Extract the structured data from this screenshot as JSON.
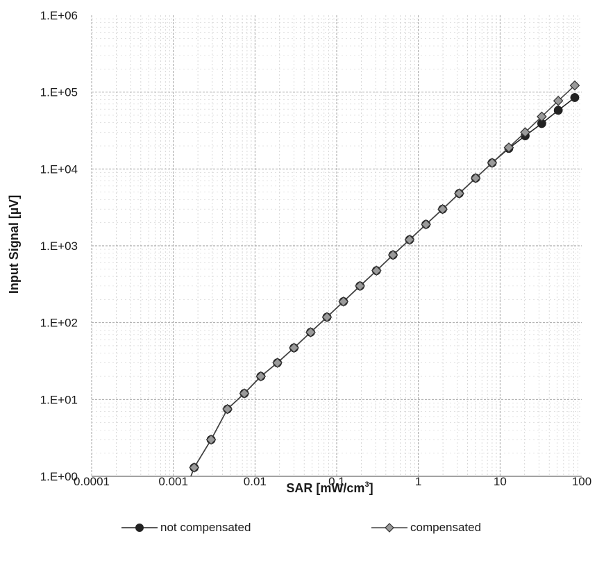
{
  "chart_data": {
    "type": "line",
    "title": "",
    "xlabel": "SAR [mW/cm",
    "xlabel_sup": "3",
    "xlabel_suffix": "]",
    "ylabel": "Input Signal [µV]",
    "x_scale": "log",
    "y_scale": "log",
    "xlim": [
      0.0001,
      100
    ],
    "ylim": [
      1,
      1000000
    ],
    "x_ticks": [
      "0.0001",
      "0.001",
      "0.01",
      "0.1",
      "1",
      "10",
      "100"
    ],
    "y_ticks": [
      "1.E+00",
      "1.E+01",
      "1.E+02",
      "1.E+03",
      "1.E+04",
      "1.E+05",
      "1.E+06"
    ],
    "grid": true,
    "legend_position": "bottom",
    "series": [
      {
        "name": "not compensated",
        "marker": "filled-circle",
        "color": "#222222",
        "x": [
          0.0018,
          0.0029,
          0.0046,
          0.0074,
          0.0118,
          0.0188,
          0.03,
          0.048,
          0.076,
          0.121,
          0.193,
          0.307,
          0.489,
          0.78,
          1.24,
          1.98,
          3.16,
          5.03,
          8.0,
          12.8,
          20.3,
          32.4,
          51.6,
          82.2
        ],
        "y": [
          1.3,
          3.0,
          7.5,
          12,
          20,
          30,
          47,
          75,
          118,
          188,
          300,
          475,
          760,
          1200,
          1900,
          3000,
          4800,
          7600,
          12000,
          18500,
          27000,
          39000,
          58000,
          85000
        ]
      },
      {
        "name": "compensated",
        "marker": "diamond",
        "color": "#777777",
        "x": [
          0.0018,
          0.0029,
          0.0046,
          0.0074,
          0.0118,
          0.0188,
          0.03,
          0.048,
          0.076,
          0.121,
          0.193,
          0.307,
          0.489,
          0.78,
          1.24,
          1.98,
          3.16,
          5.03,
          8.0,
          12.8,
          20.3,
          32.4,
          51.6,
          82.2
        ],
        "y": [
          1.3,
          3.0,
          7.5,
          12,
          20,
          30,
          47,
          75,
          118,
          188,
          300,
          475,
          760,
          1200,
          1900,
          3000,
          4800,
          7600,
          12000,
          19000,
          30000,
          48000,
          77000,
          122000
        ]
      }
    ]
  }
}
